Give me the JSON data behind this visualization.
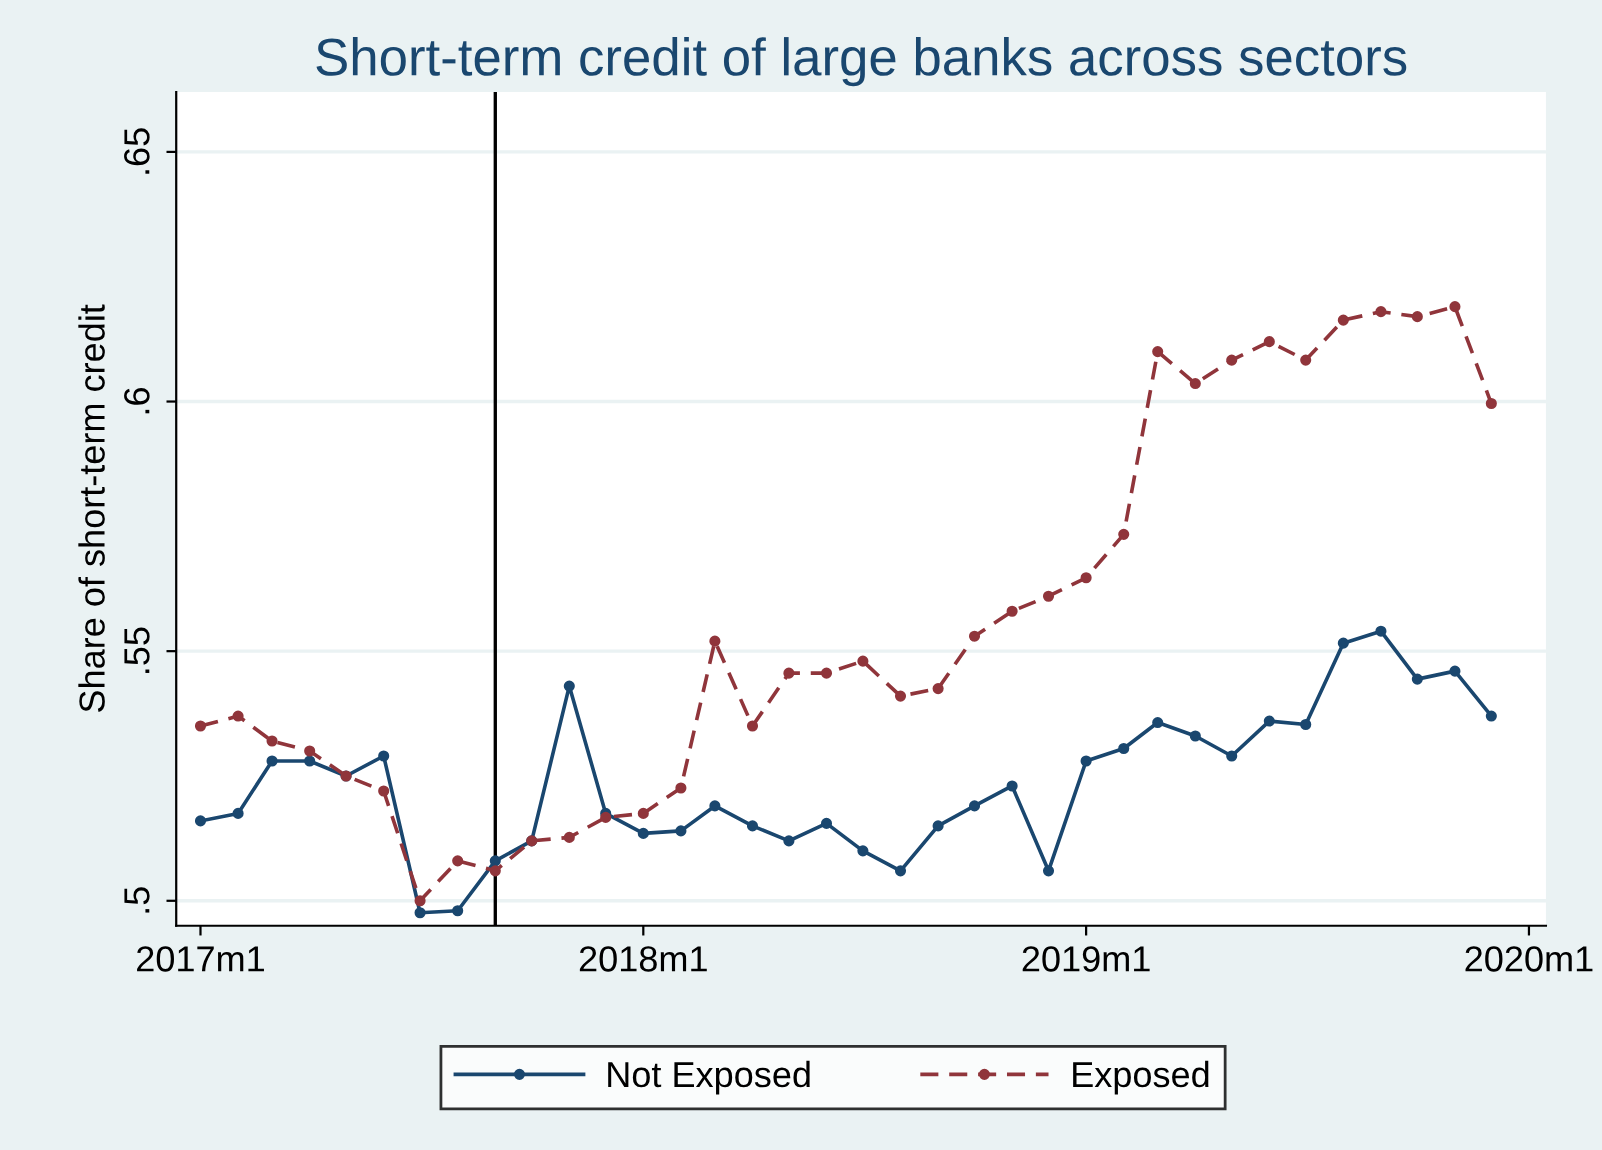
{
  "chart_data": {
    "type": "line",
    "title": "Short-term credit of large banks across sectors",
    "ylabel": "Share of short-term credit",
    "x": [
      "2017-01",
      "2017-02",
      "2017-03",
      "2017-04",
      "2017-05",
      "2017-06",
      "2017-07",
      "2017-08",
      "2017-09",
      "2017-10",
      "2017-11",
      "2017-12",
      "2018-01",
      "2018-02",
      "2018-03",
      "2018-04",
      "2018-05",
      "2018-06",
      "2018-07",
      "2018-08",
      "2018-09",
      "2018-10",
      "2018-11",
      "2018-12",
      "2019-01",
      "2019-02",
      "2019-03",
      "2019-04",
      "2019-05",
      "2019-06",
      "2019-07",
      "2019-08",
      "2019-09",
      "2019-10",
      "2019-11",
      "2019-12"
    ],
    "series": [
      {
        "name": "Not Exposed",
        "color": "#1a476f",
        "line_style": "solid",
        "values": [
          0.516,
          0.5175,
          0.528,
          0.528,
          0.525,
          0.529,
          0.4976,
          0.498,
          0.508,
          0.512,
          0.543,
          0.5175,
          0.5135,
          0.514,
          0.519,
          0.515,
          0.512,
          0.5155,
          0.51,
          0.506,
          0.515,
          0.519,
          0.523,
          0.506,
          0.528,
          0.5305,
          0.5357,
          0.533,
          0.529,
          0.536,
          0.5353,
          0.5516,
          0.554,
          0.5444,
          0.546,
          0.537
        ]
      },
      {
        "name": "Exposed",
        "color": "#90353b",
        "line_style": "dashed",
        "values": [
          0.535,
          0.537,
          0.532,
          0.53,
          0.525,
          0.522,
          0.5,
          0.508,
          0.506,
          0.512,
          0.5127,
          0.5167,
          0.5175,
          0.5226,
          0.552,
          0.535,
          0.5456,
          0.5456,
          0.548,
          0.541,
          0.5425,
          0.553,
          0.558,
          0.561,
          0.5647,
          0.5734,
          0.61,
          0.6036,
          0.6083,
          0.612,
          0.6083,
          0.6163,
          0.618,
          0.617,
          0.619,
          0.5996
        ]
      }
    ],
    "marker": "circle",
    "xlim": [
      "2016-12-12",
      "2020-01-15"
    ],
    "xticks": [
      {
        "value": "2017-01",
        "label": "2017m1"
      },
      {
        "value": "2018-01",
        "label": "2018m1"
      },
      {
        "value": "2019-01",
        "label": "2019m1"
      },
      {
        "value": "2020-01",
        "label": "2020m1"
      }
    ],
    "ylim": [
      0.495,
      0.662
    ],
    "yticks": [
      {
        "value": 0.5,
        "label": ".5"
      },
      {
        "value": 0.55,
        "label": ".55"
      },
      {
        "value": 0.6,
        "label": ".6"
      },
      {
        "value": 0.65,
        "label": ".65"
      }
    ],
    "ref_lines": [
      {
        "axis": "x",
        "value": "2017-09",
        "color": "#000000",
        "line_style": "solid"
      }
    ],
    "grid": "y",
    "legend": "bottom"
  }
}
